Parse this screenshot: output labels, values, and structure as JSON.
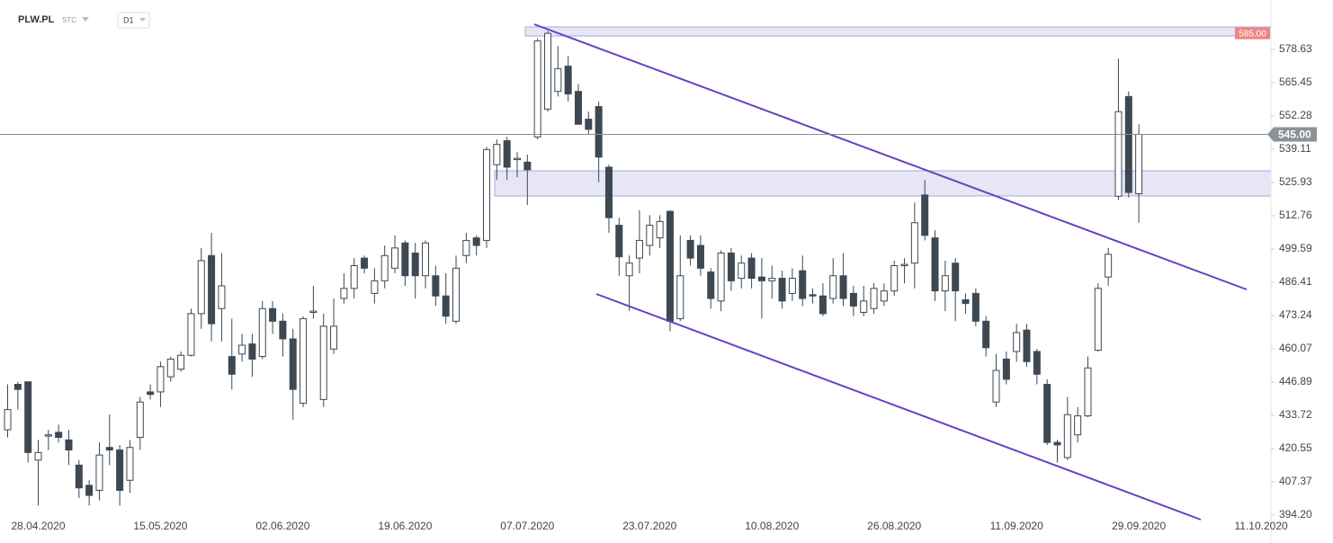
{
  "header": {
    "symbol": "PLW.PL",
    "exchange": "STC",
    "interval": "D1"
  },
  "chart_data": {
    "type": "candlestick",
    "categories": [
      null,
      null,
      null,
      "28.04.2020",
      null,
      null,
      null,
      null,
      null,
      null,
      null,
      null,
      null,
      null,
      null,
      "15.05.2020",
      null,
      null,
      null,
      null,
      null,
      null,
      null,
      null,
      null,
      null,
      null,
      "02.06.2020",
      null,
      null,
      null,
      null,
      null,
      null,
      null,
      null,
      null,
      null,
      null,
      "19.06.2020",
      null,
      null,
      null,
      null,
      null,
      null,
      null,
      null,
      null,
      null,
      null,
      "07.07.2020",
      null,
      null,
      null,
      null,
      null,
      null,
      null,
      null,
      null,
      null,
      null,
      "23.07.2020",
      null,
      null,
      null,
      null,
      null,
      null,
      null,
      null,
      null,
      null,
      null,
      "10.08.2020",
      null,
      null,
      null,
      null,
      null,
      null,
      null,
      null,
      null,
      null,
      null,
      "26.08.2020",
      null,
      null,
      null,
      null,
      null,
      null,
      null,
      null,
      null,
      null,
      null,
      "11.09.2020",
      null,
      null,
      null,
      null,
      null,
      null,
      null,
      null,
      null,
      null,
      null,
      "29.09.2020",
      null,
      null,
      null,
      null,
      null,
      null,
      null,
      null,
      null,
      null,
      null,
      "11.10.2020"
    ],
    "open": [
      428,
      446,
      447,
      416,
      425.5,
      427,
      424,
      414,
      406,
      404,
      421,
      420,
      408,
      425,
      443,
      443,
      449,
      452,
      457.5,
      474,
      497,
      476,
      457,
      458,
      462,
      457,
      476,
      471,
      464,
      438.5,
      474.5,
      440,
      460,
      480,
      484,
      496,
      482,
      487,
      492,
      502,
      498,
      489,
      489,
      481,
      471,
      497,
      504,
      503,
      533,
      542.5,
      535,
      534,
      544,
      555,
      562,
      572,
      562,
      551,
      556,
      532,
      509,
      489,
      496,
      501,
      504,
      514.5,
      472,
      503,
      501,
      490.5,
      479,
      498,
      488,
      496,
      488.5,
      487,
      488,
      482,
      491,
      481.5,
      481,
      480,
      489,
      482,
      474.5,
      476,
      479,
      483,
      493,
      494,
      521,
      504,
      483,
      494,
      479.5,
      482,
      471,
      439,
      456,
      459,
      467.5,
      459,
      446,
      423,
      417,
      426,
      433.5,
      459.5,
      488.5,
      520.5,
      560,
      521.5,
      null,
      null,
      null,
      null,
      null,
      null,
      null,
      null,
      null,
      null,
      null,
      null
    ],
    "high": [
      446,
      447,
      447,
      424,
      428,
      430,
      428,
      416,
      408,
      423,
      434,
      422,
      424,
      441,
      446,
      455,
      457,
      459,
      476,
      500,
      506,
      498,
      472,
      466,
      466,
      479,
      479,
      474,
      468,
      473,
      485,
      474,
      480,
      490,
      496,
      497,
      492,
      501,
      505,
      503,
      502,
      503,
      493,
      490,
      497,
      506,
      505,
      540,
      543,
      544,
      538,
      537,
      583,
      586,
      580,
      576,
      565,
      554,
      558,
      533,
      512,
      497,
      515,
      513,
      513,
      515,
      505,
      505,
      505,
      492,
      499,
      500,
      497,
      498,
      496,
      493,
      491,
      492,
      497,
      484,
      486,
      496,
      498,
      485,
      485,
      486,
      486,
      495,
      496,
      518,
      527,
      507,
      495,
      496,
      482,
      484,
      473,
      458,
      459,
      470,
      470,
      460,
      448,
      424,
      441,
      437,
      457,
      486,
      500,
      575,
      562,
      549,
      null,
      null,
      null,
      null,
      null,
      null,
      null,
      null,
      null,
      null,
      null,
      null
    ],
    "low": [
      425,
      436,
      415,
      398,
      420,
      423,
      414,
      401,
      398,
      400,
      414,
      398,
      403,
      420,
      440,
      437,
      447,
      451,
      457,
      468,
      463,
      463,
      444,
      455,
      449,
      456,
      466,
      457,
      432,
      437,
      472,
      437,
      458,
      478,
      480,
      490,
      478,
      484,
      490,
      485,
      480,
      484,
      477,
      470,
      470,
      494,
      497,
      500,
      527,
      527,
      528,
      517,
      543,
      554,
      560,
      558,
      549,
      545,
      526,
      506,
      489,
      475,
      490,
      497,
      500,
      467,
      471,
      493,
      489,
      476,
      475,
      483,
      484,
      484,
      472,
      480,
      476,
      479,
      477,
      478,
      473,
      478,
      477,
      473,
      473,
      474,
      477,
      481,
      486,
      484,
      503,
      479,
      475,
      471,
      474,
      469,
      457,
      437,
      446,
      455,
      453,
      446,
      422,
      415,
      416,
      423,
      433,
      459,
      485,
      519,
      520,
      510,
      null,
      null,
      null,
      null,
      null,
      null,
      null,
      null,
      null,
      null,
      null,
      null
    ],
    "close": [
      436,
      444,
      419,
      419,
      426,
      425,
      420,
      405,
      402,
      418,
      420,
      404,
      421,
      439,
      442,
      453,
      456,
      457.5,
      474,
      495,
      470,
      485,
      450,
      461.5,
      456,
      476,
      471,
      464,
      444,
      472,
      475,
      469,
      469,
      484,
      493,
      492,
      487,
      497,
      500,
      489,
      489,
      502,
      481,
      473,
      492,
      503,
      501,
      539,
      541,
      532,
      535.5,
      531,
      582,
      585,
      571,
      561,
      549,
      547,
      536,
      512,
      496.5,
      494,
      503,
      509,
      510.5,
      471,
      489,
      496,
      492,
      480,
      498,
      487,
      494,
      488,
      487,
      488,
      479,
      488,
      480,
      481,
      474,
      489,
      480,
      477,
      479,
      484,
      483,
      493,
      493.5,
      510,
      505,
      483,
      489,
      483,
      478,
      471,
      460.5,
      451.5,
      448,
      466.5,
      455,
      450,
      423,
      422,
      434,
      433.5,
      452.5,
      484,
      497.5,
      554,
      522,
      545,
      null,
      null,
      null,
      null,
      null,
      null,
      null,
      null,
      null,
      null,
      null,
      null
    ],
    "up_color": "#ffffff",
    "down_color": "#3d4852",
    "wick_color": "#3d4852",
    "ylim": [
      394.2,
      595.4
    ],
    "yticks": [
      {
        "value": 394.2,
        "label": "394.20"
      },
      407.37,
      420.55,
      433.72,
      446.89,
      460.07,
      473.24,
      486.41,
      499.59,
      512.76,
      525.93,
      539.11,
      552.28,
      565.45,
      578.63
    ],
    "current_price": {
      "value": 545,
      "label": "545.00"
    },
    "level": {
      "value": 585,
      "label": "585.00"
    },
    "grid": false
  }
}
